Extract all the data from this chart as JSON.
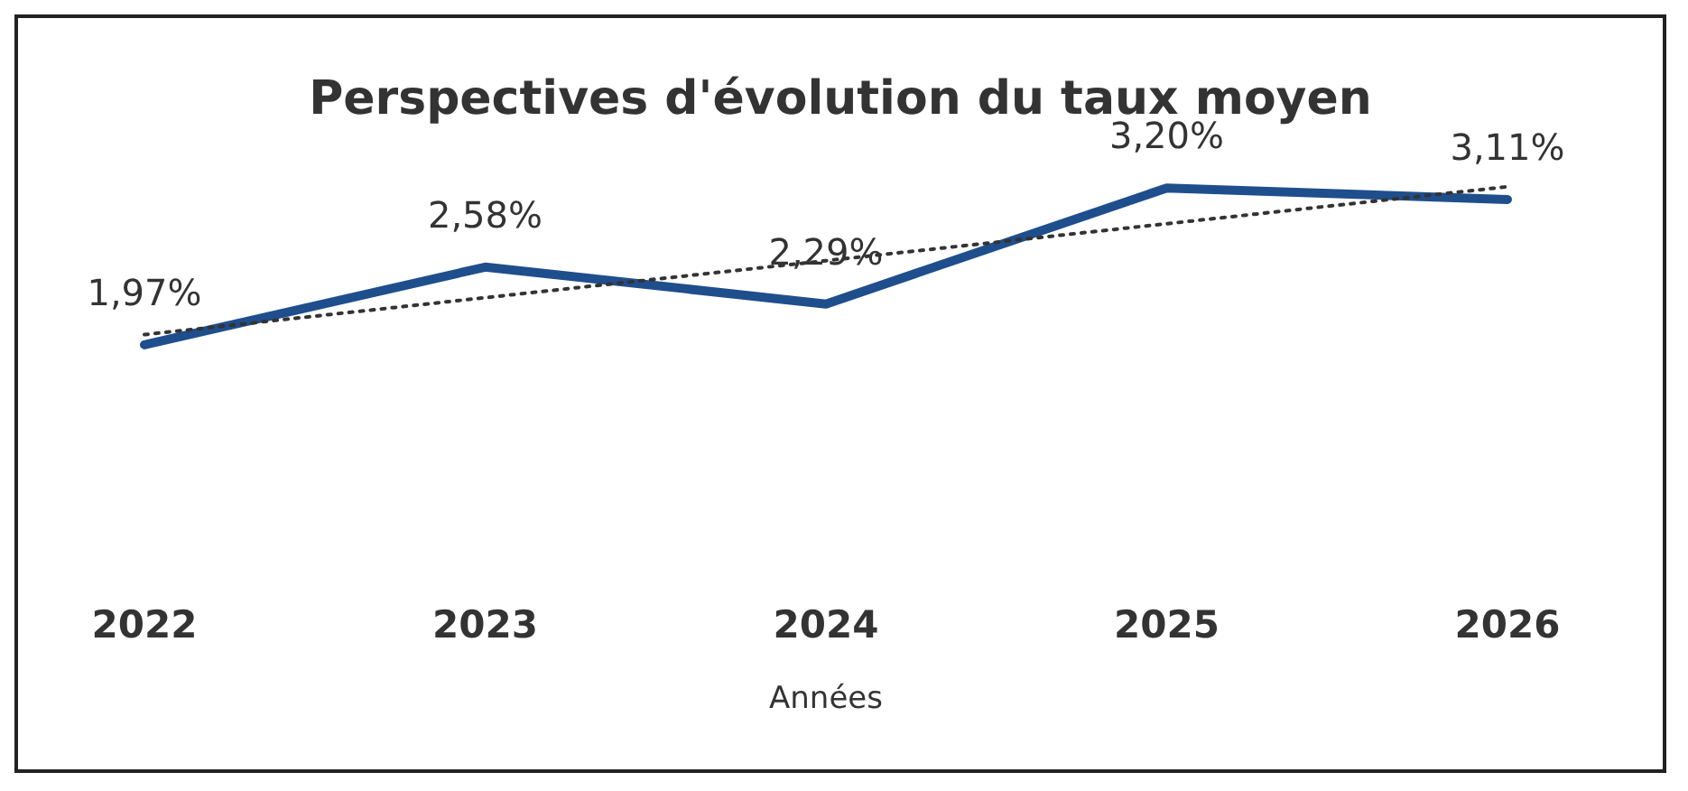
{
  "chart_data": {
    "type": "line",
    "title": "Perspectives d'évolution du taux moyen",
    "xlabel": "Années",
    "categories": [
      "2022",
      "2023",
      "2024",
      "2025",
      "2026"
    ],
    "series": [
      {
        "color": "#1f4e8c",
        "values": [
          1.97,
          2.58,
          2.29,
          3.2,
          3.11
        ],
        "value_labels": [
          "1,97%",
          "2,58%",
          "2,29%",
          "3,20%",
          "3,11%"
        ],
        "line_style": "solid"
      },
      {
        "type": "line",
        "color": "#333333",
        "values": [
          2.05,
          2.34,
          2.63,
          2.92,
          3.21
        ],
        "line_style": "dotted"
      }
    ],
    "marker": "none"
  }
}
